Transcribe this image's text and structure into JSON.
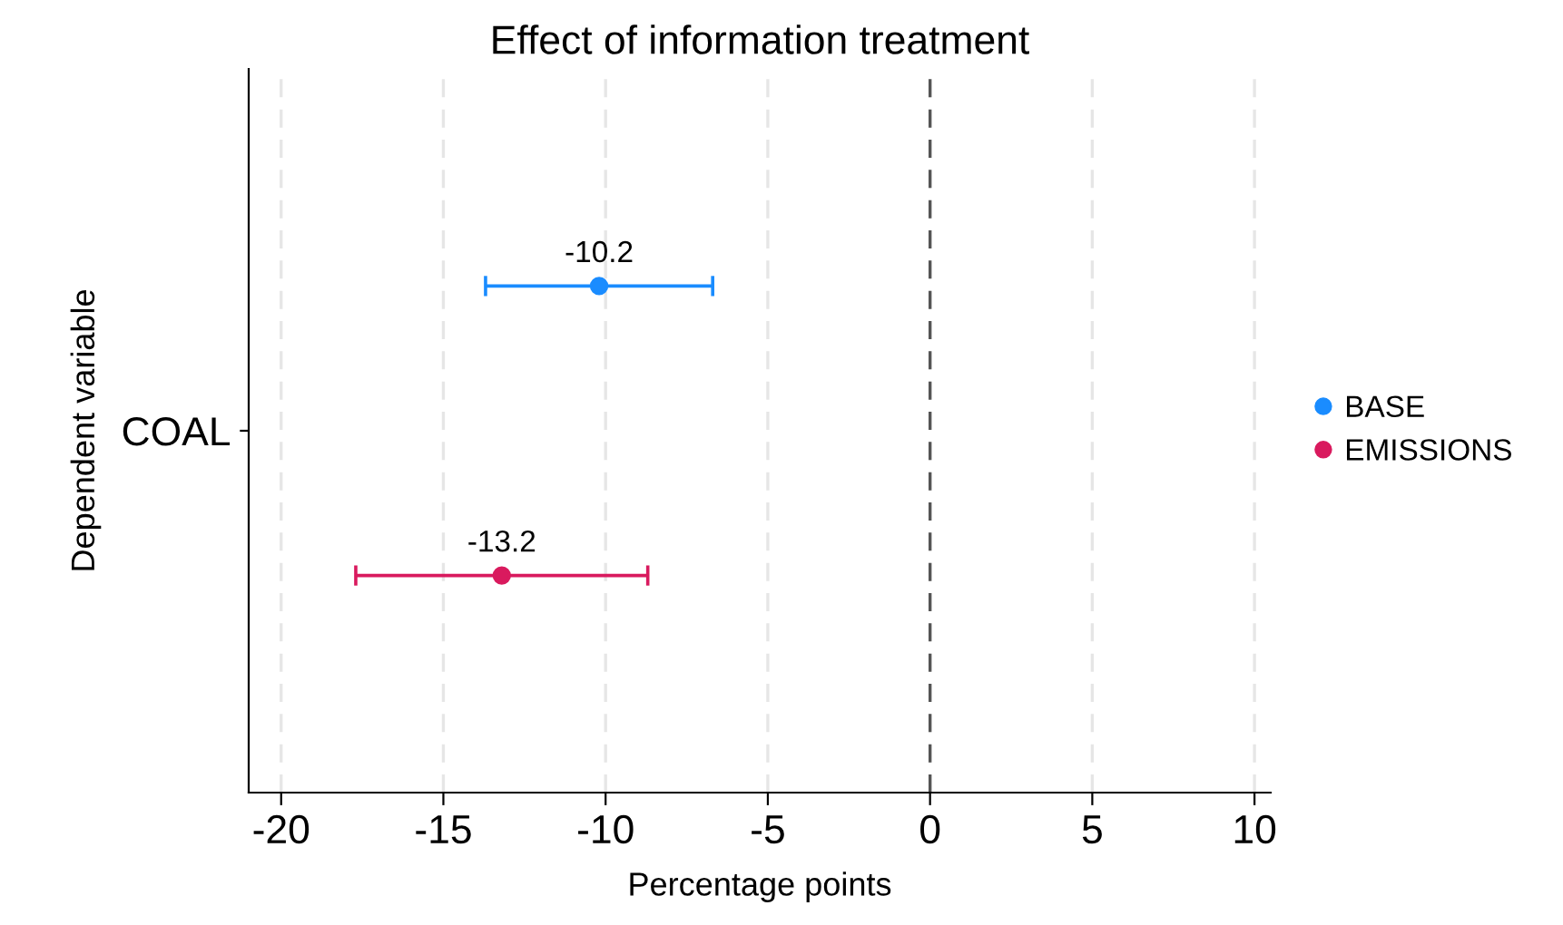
{
  "chart_data": {
    "type": "scatter",
    "orientation": "horizontal",
    "title": "Effect of information treatment",
    "xlabel": "Percentage points",
    "ylabel": "Dependent variable",
    "categories": [
      null,
      null,
      "COAL",
      null,
      null
    ],
    "series": [
      {
        "name": "BASE",
        "color": "#1a8cff",
        "values": [
          null,
          -10.2,
          null,
          null,
          null
        ],
        "errors": [
          null,
          [
            -13.7,
            -6.7
          ],
          null,
          null,
          null
        ]
      },
      {
        "name": "EMISSIONS",
        "color": "#d91a5e",
        "values": [
          null,
          null,
          null,
          -13.2,
          null
        ],
        "errors": [
          null,
          null,
          null,
          [
            -17.7,
            -8.7
          ],
          null
        ]
      }
    ],
    "xlim": [
      -21,
      10.5
    ],
    "xticks": [
      -20,
      -15,
      -10,
      -5,
      0,
      5,
      10
    ],
    "ref_lines": [
      {
        "axis": "x",
        "value": 0,
        "color": "#555555",
        "line_style": "dashed"
      }
    ],
    "data_labels": true,
    "grid": "x",
    "legend": "right",
    "marker": "circle"
  }
}
